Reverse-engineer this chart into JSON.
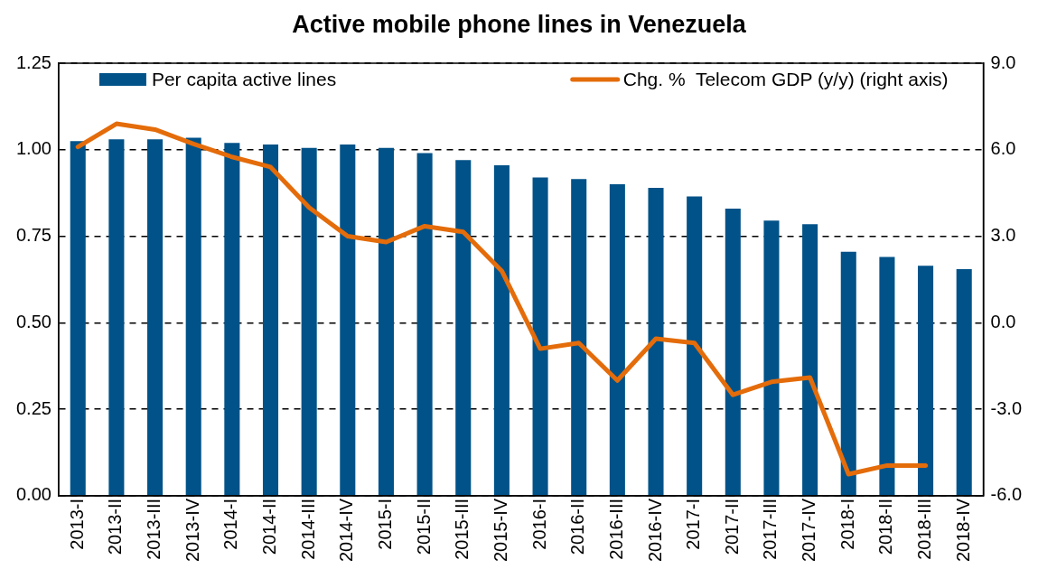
{
  "chart_data": {
    "type": "bar",
    "title": "Active mobile phone lines in Venezuela",
    "categories": [
      "2013-I",
      "2013-II",
      "2013-III",
      "2013-IV",
      "2014-I",
      "2014-II",
      "2014-III",
      "2014-IV",
      "2015-I",
      "2015-II",
      "2015-III",
      "2015-IV",
      "2016-I",
      "2016-II",
      "2016-III",
      "2016-IV",
      "2017-I",
      "2017-II",
      "2017-III",
      "2017-IV",
      "2018-I",
      "2018-II",
      "2018-III",
      "2018-IV"
    ],
    "series": [
      {
        "name": "Per capita active lines",
        "color": "#005288",
        "values": [
          1.025,
          1.03,
          1.03,
          1.035,
          1.02,
          1.015,
          1.005,
          1.015,
          1.005,
          0.99,
          0.97,
          0.955,
          0.92,
          0.915,
          0.9,
          0.89,
          0.865,
          0.83,
          0.795,
          0.785,
          0.705,
          0.69,
          0.665,
          0.655
        ]
      },
      {
        "name": "Chg. %  Telecom GDP (y/y) (right axis)",
        "type": "line",
        "axis": "y2",
        "color": "#e46c0a",
        "values": [
          6.1,
          6.9,
          6.7,
          6.2,
          5.75,
          5.4,
          4.0,
          3.0,
          2.8,
          3.35,
          3.15,
          1.8,
          -0.9,
          -0.7,
          -2.0,
          -0.55,
          -0.7,
          -2.5,
          -2.05,
          -1.9,
          -5.25,
          -4.95,
          -4.95,
          null
        ]
      }
    ],
    "ylim": [
      0,
      1.25
    ],
    "yticks": [
      {
        "value": 0,
        "label": "0.00"
      },
      {
        "value": 0.25,
        "label": "0.25"
      },
      {
        "value": 0.5,
        "label": "0.50"
      },
      {
        "value": 0.75,
        "label": "0.75"
      },
      {
        "value": 1,
        "label": "1.00"
      },
      {
        "value": 1.25,
        "label": "1.25"
      }
    ],
    "y2lim": [
      -6,
      9
    ],
    "y2ticks": [
      {
        "value": -6,
        "label": "-6.0"
      },
      {
        "value": -3,
        "label": "-3.0"
      },
      {
        "value": 0,
        "label": "0.0"
      },
      {
        "value": 3,
        "label": "3.0"
      },
      {
        "value": 6,
        "label": "6.0"
      },
      {
        "value": 9,
        "label": "9.0"
      }
    ],
    "grid": "y",
    "legend": "top",
    "marker": "none",
    "line_style": "solid"
  }
}
